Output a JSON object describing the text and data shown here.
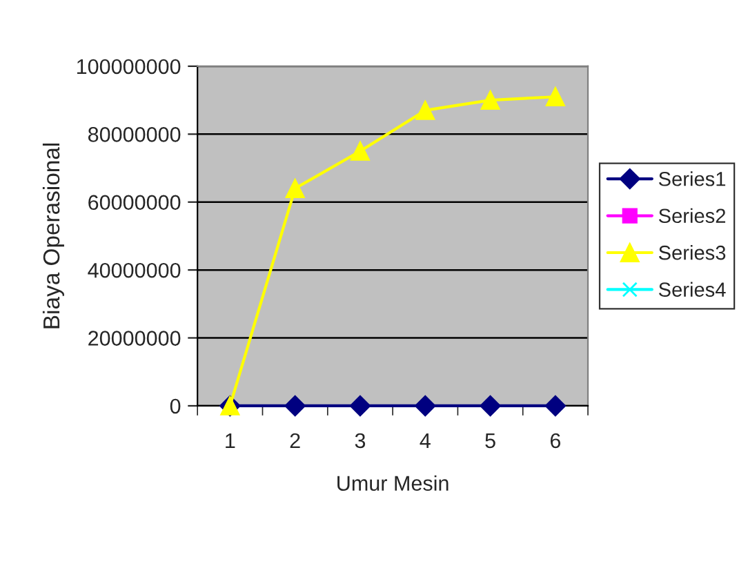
{
  "chart_data": {
    "type": "line",
    "xlabel": "Umur Mesin",
    "ylabel": "Biaya Operasional",
    "categories": [
      "1",
      "2",
      "3",
      "4",
      "5",
      "6"
    ],
    "series": [
      {
        "name": "Series1",
        "color": "#000080",
        "marker": "diamond",
        "values": [
          0,
          0,
          0,
          0,
          0,
          0
        ]
      },
      {
        "name": "Series2",
        "color": "#ff00ff",
        "marker": "square",
        "values": [
          null,
          null,
          null,
          null,
          null,
          null
        ]
      },
      {
        "name": "Series3",
        "color": "#ffff00",
        "marker": "triangle",
        "values": [
          0,
          64000000,
          75000000,
          87000000,
          90000000,
          91000000
        ]
      },
      {
        "name": "Series4",
        "color": "#00ffff",
        "marker": "cross",
        "values": [
          null,
          null,
          null,
          null,
          null,
          null
        ]
      }
    ],
    "ylim": [
      0,
      100000000
    ],
    "yticks": [
      0,
      20000000,
      40000000,
      60000000,
      80000000,
      100000000
    ],
    "grid": "y",
    "legend": "right"
  }
}
